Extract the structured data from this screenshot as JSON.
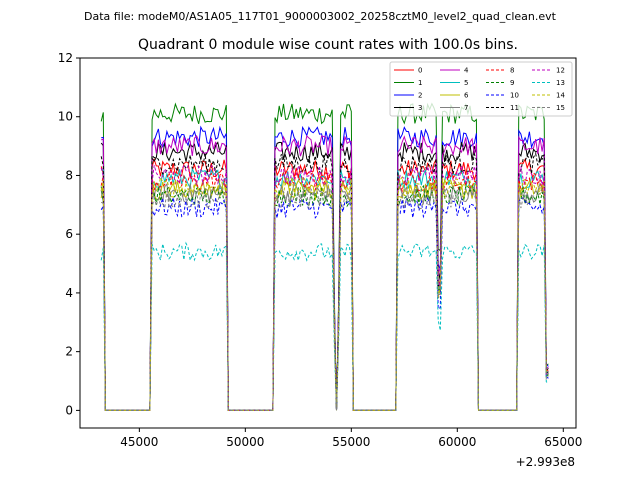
{
  "figure": {
    "suptitle": "Data file: modeM0/AS1A05_117T01_9000003002_20258cztM0_level2_quad_clean.evt"
  },
  "chart_data": {
    "type": "line",
    "title": "Quadrant 0 module wise count rates with 100.0s bins.",
    "xlabel": "",
    "ylabel": "",
    "xlim": [
      42200,
      65600
    ],
    "ylim": [
      -0.6,
      12
    ],
    "x_offset_label": "+2.993e8",
    "x_ticks": [
      45000,
      50000,
      55000,
      60000,
      65000
    ],
    "x_tick_labels": [
      "45000",
      "50000",
      "55000",
      "60000",
      "65000"
    ],
    "y_ticks": [
      0,
      2,
      4,
      6,
      8,
      10,
      12
    ],
    "y_tick_labels": [
      "0",
      "2",
      "4",
      "6",
      "8",
      "10",
      "12"
    ],
    "time_start": 43200,
    "time_end": 64300,
    "bin_seconds": 100,
    "on_intervals": [
      [
        43200,
        43300
      ],
      [
        45600,
        49100
      ],
      [
        51400,
        54250
      ],
      [
        54350,
        55000
      ],
      [
        57200,
        59100
      ],
      [
        59200,
        60900
      ],
      [
        62900,
        64300
      ]
    ],
    "legend_position": "upper right",
    "series": [
      {
        "name": "0",
        "mean": 8.2,
        "noise": 0.35,
        "color": "#ff0000",
        "dash": "solid"
      },
      {
        "name": "1",
        "mean": 10.1,
        "noise": 0.35,
        "color": "#008000",
        "dash": "solid"
      },
      {
        "name": "2",
        "mean": 9.3,
        "noise": 0.35,
        "color": "#0000ff",
        "dash": "solid"
      },
      {
        "name": "3",
        "mean": 8.8,
        "noise": 0.35,
        "color": "#000000",
        "dash": "solid"
      },
      {
        "name": "4",
        "mean": 9.0,
        "noise": 0.35,
        "color": "#bf00bf",
        "dash": "solid"
      },
      {
        "name": "5",
        "mean": 7.9,
        "noise": 0.35,
        "color": "#00bfbf",
        "dash": "solid"
      },
      {
        "name": "6",
        "mean": 7.5,
        "noise": 0.35,
        "color": "#bfbf00",
        "dash": "solid"
      },
      {
        "name": "7",
        "mean": 7.4,
        "noise": 0.35,
        "color": "#808080",
        "dash": "solid"
      },
      {
        "name": "8",
        "mean": 7.8,
        "noise": 0.35,
        "color": "#ff0000",
        "dash": "dashed"
      },
      {
        "name": "9",
        "mean": 7.3,
        "noise": 0.35,
        "color": "#008000",
        "dash": "dashed"
      },
      {
        "name": "10",
        "mean": 6.9,
        "noise": 0.35,
        "color": "#0000ff",
        "dash": "dashed"
      },
      {
        "name": "11",
        "mean": 8.4,
        "noise": 0.35,
        "color": "#000000",
        "dash": "dashed"
      },
      {
        "name": "12",
        "mean": 8.0,
        "noise": 0.35,
        "color": "#bf00bf",
        "dash": "dashed"
      },
      {
        "name": "13",
        "mean": 5.4,
        "noise": 0.3,
        "color": "#00bfbf",
        "dash": "dashed"
      },
      {
        "name": "14",
        "mean": 7.6,
        "noise": 0.35,
        "color": "#bfbf00",
        "dash": "dashed"
      },
      {
        "name": "15",
        "mean": 7.2,
        "noise": 0.35,
        "color": "#808080",
        "dash": "dashed"
      }
    ]
  }
}
